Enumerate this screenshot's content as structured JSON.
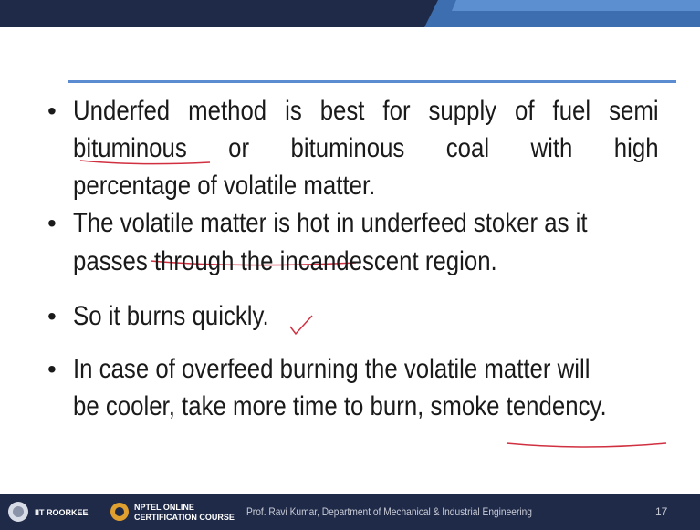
{
  "slide": {
    "bullets": [
      {
        "lines": [
          "Underfed method is best for supply of fuel semi",
          "bituminous or bituminous coal with high",
          "percentage of volatile matter."
        ]
      },
      {
        "lines": [
          "The volatile matter is hot in underfeed stoker as it",
          "passes through the incandescent region."
        ]
      },
      {
        "lines": [
          "So it burns quickly."
        ]
      },
      {
        "lines": [
          "In case of overfeed burning the volatile matter will",
          "be cooler, take more time to burn, smoke tendency."
        ]
      }
    ],
    "footer": {
      "institute": "IIT ROORKEE",
      "course": [
        "NPTEL ONLINE",
        "CERTIFICATION COURSE"
      ],
      "credit": "Prof. Ravi Kumar, Department of Mechanical & Industrial Engineering",
      "page": "17"
    }
  }
}
